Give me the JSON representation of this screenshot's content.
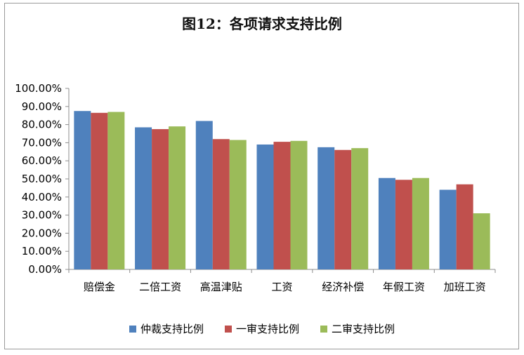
{
  "chart_data": {
    "type": "bar",
    "title": "图12：各项请求支持比例",
    "xlabel": "",
    "ylabel": "",
    "ylim": [
      0,
      100
    ],
    "yticks": [
      "0.00%",
      "10.00%",
      "20.00%",
      "30.00%",
      "40.00%",
      "50.00%",
      "60.00%",
      "70.00%",
      "80.00%",
      "90.00%",
      "100.00%"
    ],
    "categories": [
      "赔偿金",
      "二倍工资",
      "高温津贴",
      "工资",
      "经济补偿",
      "年假工资",
      "加班工资"
    ],
    "series": [
      {
        "name": "仲裁支持比例",
        "color": "#4f81bd",
        "values": [
          87.5,
          78.5,
          82.0,
          69.0,
          67.5,
          50.5,
          44.0
        ]
      },
      {
        "name": "一审支持比例",
        "color": "#c0504d",
        "values": [
          86.5,
          77.5,
          72.0,
          70.5,
          66.0,
          49.5,
          47.0
        ]
      },
      {
        "name": "二审支持比例",
        "color": "#9bbb59",
        "values": [
          87.0,
          79.0,
          71.5,
          71.0,
          67.0,
          50.5,
          31.0
        ]
      }
    ],
    "grid": false,
    "legend_position": "bottom"
  }
}
